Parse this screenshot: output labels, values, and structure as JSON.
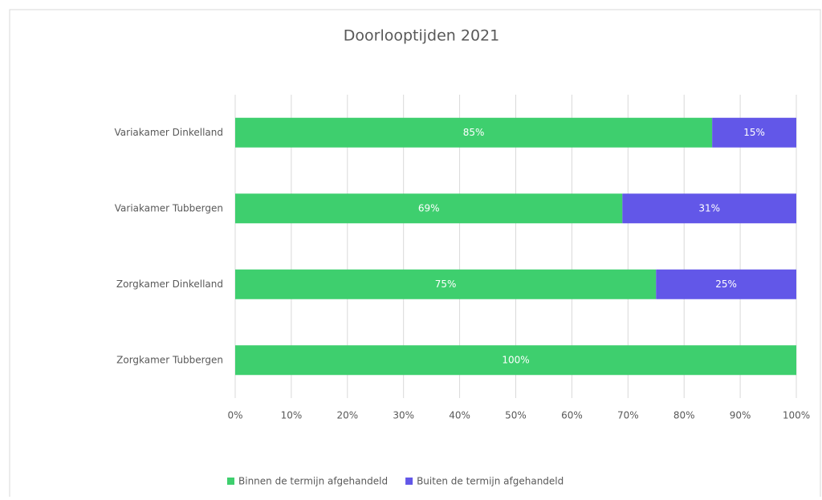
{
  "chart_data": {
    "type": "stacked-bar-horizontal",
    "title": "Doorlooptijden 2021",
    "categories": [
      "Variakamer Dinkelland",
      "Variakamer Tubbergen",
      "Zorgkamer Dinkelland",
      "Zorgkamer Tubbergen"
    ],
    "series": [
      {
        "name": "Binnen de termijn afgehandeld",
        "color": "#3ecf6e",
        "values": [
          85,
          69,
          75,
          100
        ],
        "value_labels": [
          "85%",
          "69%",
          "75%",
          "100%"
        ]
      },
      {
        "name": "Buiten de termijn afgehandeld",
        "color": "#6257e8",
        "values": [
          15,
          31,
          25,
          null
        ],
        "value_labels": [
          "15%",
          "31%",
          "25%",
          null
        ]
      }
    ],
    "xlim": [
      0,
      100
    ],
    "xticks": [
      {
        "value": 0,
        "label": "0%"
      },
      {
        "value": 10,
        "label": "10%"
      },
      {
        "value": 20,
        "label": "20%"
      },
      {
        "value": 30,
        "label": "30%"
      },
      {
        "value": 40,
        "label": "40%"
      },
      {
        "value": 50,
        "label": "50%"
      },
      {
        "value": 60,
        "label": "60%"
      },
      {
        "value": 70,
        "label": "70%"
      },
      {
        "value": 80,
        "label": "80%"
      },
      {
        "value": 90,
        "label": "90%"
      },
      {
        "value": 100,
        "label": "100%"
      }
    ],
    "grid": true,
    "legend": "bottom"
  }
}
